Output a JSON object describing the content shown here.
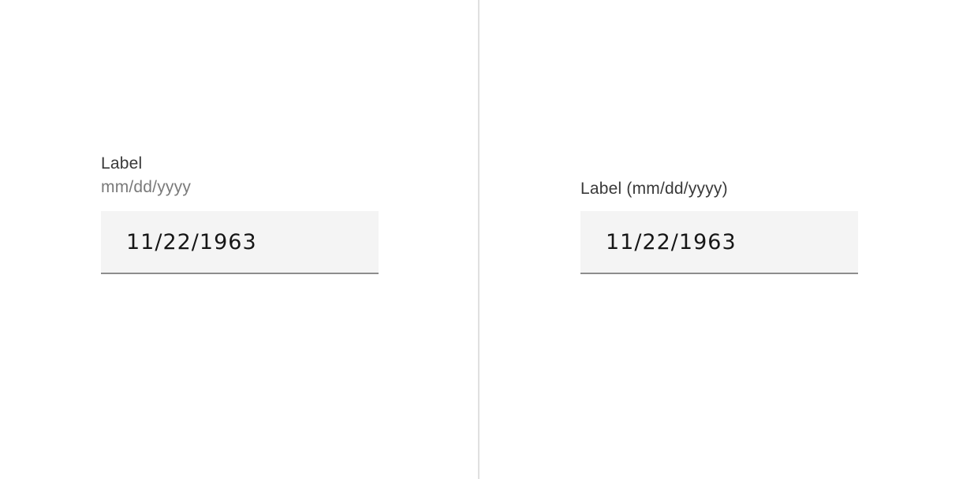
{
  "left_field": {
    "label": "Label",
    "helper_text": "mm/dd/yyyy",
    "value": "11/22/1963"
  },
  "right_field": {
    "label": "Label (mm/dd/yyyy)",
    "value": "11/22/1963"
  },
  "colors": {
    "input_background": "#f4f4f4",
    "input_border": "#8d8d8d",
    "divider": "#e0e0e0",
    "label_text": "#393939",
    "helper_text": "#7a7a7a"
  }
}
